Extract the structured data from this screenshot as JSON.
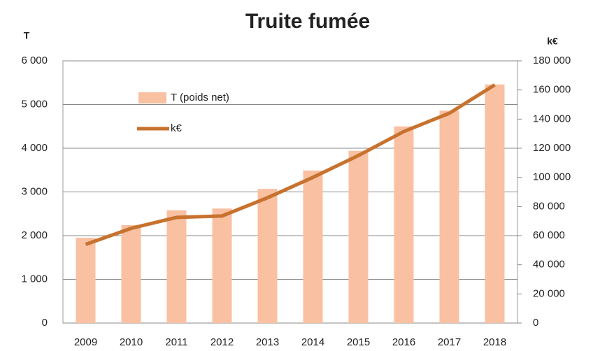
{
  "chart_data": {
    "type": "bar_line",
    "title": "Truite fumée",
    "y_label": "T",
    "y2_label": "k€",
    "categories": [
      "2009",
      "2010",
      "2011",
      "2012",
      "2013",
      "2014",
      "2015",
      "2016",
      "2017",
      "2018"
    ],
    "series": [
      {
        "name": "T (poids net)",
        "type": "bar",
        "color": "#f9c0a2",
        "values": [
          1950,
          2240,
          2580,
          2620,
          3070,
          3490,
          3940,
          4500,
          4860,
          5460
        ]
      },
      {
        "name": "k€",
        "type": "line",
        "axis": "y2",
        "color": "#c8722f",
        "values": [
          54000,
          65000,
          72500,
          73500,
          86000,
          100000,
          115000,
          131500,
          144000,
          163500
        ]
      }
    ],
    "ylim": [
      0,
      6000
    ],
    "yticks": [
      0,
      {
        "value": 1000,
        "label": "1 000"
      },
      {
        "value": 2000,
        "label": "2 000"
      },
      {
        "value": 3000,
        "label": "3 000"
      },
      {
        "value": 4000,
        "label": "4 000"
      },
      {
        "value": 5000,
        "label": "5 000"
      },
      {
        "value": 6000,
        "label": "6 000"
      }
    ],
    "y2lim": [
      0,
      180000
    ],
    "y2ticks": [
      0,
      {
        "value": 20000,
        "label": "20 000"
      },
      {
        "value": 40000,
        "label": "40 000"
      },
      {
        "value": 60000,
        "label": "60 000"
      },
      {
        "value": 80000,
        "label": "80 000"
      },
      {
        "value": 100000,
        "label": "100 000"
      },
      {
        "value": 120000,
        "label": "120 000"
      },
      {
        "value": 140000,
        "label": "140 000"
      },
      {
        "value": 160000,
        "label": "160 000"
      },
      {
        "value": 180000,
        "label": "180 000"
      }
    ],
    "grid": true,
    "legend": "top-left"
  }
}
